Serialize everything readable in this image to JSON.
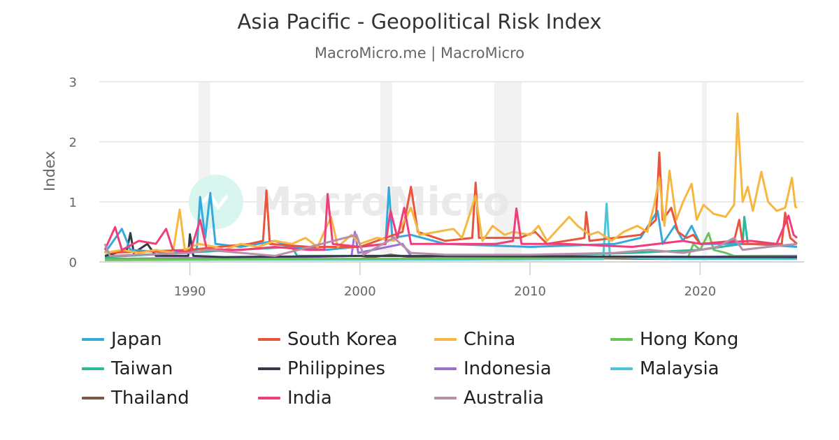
{
  "chart_data": {
    "type": "line",
    "title": "Asia Pacific - Geopolitical Risk Index",
    "subtitle": "MacroMicro.me | MacroMicro",
    "xlabel": "",
    "ylabel": "Index",
    "xlim": [
      1985,
      2025.7
    ],
    "ylim": [
      0,
      3
    ],
    "xticks": [
      "1990",
      "2000",
      "2010",
      "2020"
    ],
    "yticks": [
      "0",
      "1",
      "2",
      "3"
    ],
    "grid": true,
    "legend_placement": "bottom",
    "shaded_periods": [
      [
        1990.5,
        1991.2
      ],
      [
        2001.2,
        2001.9
      ],
      [
        2007.9,
        2009.5
      ],
      [
        2020.1,
        2020.4
      ]
    ],
    "watermark": "MacroMicro",
    "series": [
      {
        "name": "Thailand",
        "color": "#7b5848",
        "points": [
          [
            1985,
            0.05
          ],
          [
            1990,
            0.06
          ],
          [
            1995,
            0.05
          ],
          [
            2000,
            0.05
          ],
          [
            2001.8,
            0.12
          ],
          [
            2003,
            0.08
          ],
          [
            2005,
            0.05
          ],
          [
            2010,
            0.05
          ],
          [
            2014,
            0.06
          ],
          [
            2018,
            0.05
          ],
          [
            2020,
            0.07
          ],
          [
            2023,
            0.08
          ],
          [
            2025,
            0.06
          ],
          [
            2025.7,
            0.06
          ]
        ]
      },
      {
        "name": "Malaysia",
        "color": "#4ec5d6",
        "points": [
          [
            1985,
            0.03
          ],
          [
            1995,
            0.04
          ],
          [
            2005,
            0.04
          ],
          [
            2014.3,
            0.05
          ],
          [
            2014.5,
            0.97
          ],
          [
            2014.7,
            0.08
          ],
          [
            2018,
            0.05
          ],
          [
            2025.7,
            0.05
          ]
        ]
      },
      {
        "name": "Indonesia",
        "color": "#9b6fd8",
        "points": [
          [
            1985,
            0.05
          ],
          [
            1995,
            0.07
          ],
          [
            1999.5,
            0.1
          ],
          [
            1999.7,
            0.5
          ],
          [
            1999.9,
            0.15
          ],
          [
            2002.5,
            0.3
          ],
          [
            2003,
            0.1
          ],
          [
            2010,
            0.08
          ],
          [
            2020,
            0.08
          ],
          [
            2023,
            0.1
          ],
          [
            2025.7,
            0.1
          ]
        ]
      },
      {
        "name": "Hong Kong",
        "color": "#6cc35a",
        "points": [
          [
            1985,
            0.04
          ],
          [
            2000,
            0.05
          ],
          [
            2019.3,
            0.08
          ],
          [
            2019.6,
            0.3
          ],
          [
            2020,
            0.2
          ],
          [
            2020.5,
            0.48
          ],
          [
            2020.8,
            0.2
          ],
          [
            2021.5,
            0.15
          ],
          [
            2022,
            0.1
          ],
          [
            2025.7,
            0.08
          ]
        ]
      },
      {
        "name": "Taiwan",
        "color": "#2cb89a",
        "points": [
          [
            1985,
            0.08
          ],
          [
            1996,
            0.25
          ],
          [
            1996.3,
            0.1
          ],
          [
            2000,
            0.1
          ],
          [
            2010,
            0.1
          ],
          [
            2016,
            0.15
          ],
          [
            2020,
            0.2
          ],
          [
            2022.5,
            0.3
          ],
          [
            2022.6,
            0.75
          ],
          [
            2022.8,
            0.3
          ],
          [
            2024,
            0.3
          ],
          [
            2025.7,
            0.25
          ]
        ]
      },
      {
        "name": "Philippines",
        "color": "#333a4a",
        "points": [
          [
            1985,
            0.1
          ],
          [
            1986.3,
            0.2
          ],
          [
            1986.5,
            0.48
          ],
          [
            1986.7,
            0.15
          ],
          [
            1987.5,
            0.3
          ],
          [
            1988,
            0.1
          ],
          [
            1989.9,
            0.1
          ],
          [
            1990,
            0.46
          ],
          [
            1990.2,
            0.1
          ],
          [
            1992,
            0.08
          ],
          [
            2000,
            0.1
          ],
          [
            2025.7,
            0.08
          ]
        ]
      },
      {
        "name": "Japan",
        "color": "#36a9dc",
        "points": [
          [
            1985,
            0.15
          ],
          [
            1986,
            0.55
          ],
          [
            1986.5,
            0.2
          ],
          [
            1989,
            0.15
          ],
          [
            1990.4,
            0.2
          ],
          [
            1990.6,
            1.08
          ],
          [
            1990.9,
            0.4
          ],
          [
            1991.2,
            1.15
          ],
          [
            1991.5,
            0.3
          ],
          [
            1993,
            0.25
          ],
          [
            1995,
            0.35
          ],
          [
            1996,
            0.25
          ],
          [
            1998,
            0.2
          ],
          [
            2001.5,
            0.3
          ],
          [
            2001.7,
            1.24
          ],
          [
            2001.9,
            0.4
          ],
          [
            2003,
            0.45
          ],
          [
            2005,
            0.3
          ],
          [
            2010,
            0.25
          ],
          [
            2015,
            0.3
          ],
          [
            2016.5,
            0.4
          ],
          [
            2017.5,
            0.85
          ],
          [
            2017.8,
            0.3
          ],
          [
            2018.5,
            0.6
          ],
          [
            2019,
            0.35
          ],
          [
            2019.5,
            0.6
          ],
          [
            2020,
            0.3
          ],
          [
            2023,
            0.3
          ],
          [
            2025.7,
            0.25
          ]
        ]
      },
      {
        "name": "South Korea",
        "color": "#e8553a",
        "points": [
          [
            1985,
            0.15
          ],
          [
            1990,
            0.2
          ],
          [
            1993.5,
            0.3
          ],
          [
            1994.3,
            0.35
          ],
          [
            1994.5,
            1.19
          ],
          [
            1994.7,
            0.3
          ],
          [
            1997,
            0.25
          ],
          [
            2000,
            0.25
          ],
          [
            2002.5,
            0.5
          ],
          [
            2003,
            1.25
          ],
          [
            2003.4,
            0.5
          ],
          [
            2005,
            0.35
          ],
          [
            2006.6,
            0.4
          ],
          [
            2006.8,
            1.32
          ],
          [
            2007,
            0.4
          ],
          [
            2009.4,
            0.4
          ],
          [
            2010.3,
            0.5
          ],
          [
            2011,
            0.3
          ],
          [
            2013.2,
            0.4
          ],
          [
            2013.3,
            0.83
          ],
          [
            2013.5,
            0.35
          ],
          [
            2016.5,
            0.45
          ],
          [
            2017.4,
            0.7
          ],
          [
            2017.6,
            1.82
          ],
          [
            2017.8,
            0.7
          ],
          [
            2018.3,
            0.9
          ],
          [
            2018.7,
            0.5
          ],
          [
            2019.2,
            0.4
          ],
          [
            2019.6,
            0.45
          ],
          [
            2020,
            0.3
          ],
          [
            2022,
            0.35
          ],
          [
            2022.3,
            0.7
          ],
          [
            2022.5,
            0.3
          ],
          [
            2024.8,
            0.3
          ],
          [
            2025,
            0.82
          ],
          [
            2025.3,
            0.4
          ],
          [
            2025.7,
            0.3
          ]
        ]
      },
      {
        "name": "China",
        "color": "#f6b63f",
        "points": [
          [
            1985,
            0.15
          ],
          [
            1986,
            0.2
          ],
          [
            1987,
            0.15
          ],
          [
            1988,
            0.2
          ],
          [
            1989,
            0.15
          ],
          [
            1989.4,
            0.87
          ],
          [
            1989.7,
            0.2
          ],
          [
            1990.5,
            0.3
          ],
          [
            1991.5,
            0.25
          ],
          [
            1992,
            0.2
          ],
          [
            1993,
            0.3
          ],
          [
            1994,
            0.25
          ],
          [
            1995,
            0.35
          ],
          [
            1996,
            0.3
          ],
          [
            1996.8,
            0.4
          ],
          [
            1997.5,
            0.25
          ],
          [
            1998.3,
            0.75
          ],
          [
            1998.7,
            0.25
          ],
          [
            1999.5,
            0.45
          ],
          [
            2000,
            0.3
          ],
          [
            2001,
            0.4
          ],
          [
            2002,
            0.35
          ],
          [
            2003,
            0.9
          ],
          [
            2003.5,
            0.45
          ],
          [
            2004.5,
            0.5
          ],
          [
            2005.5,
            0.55
          ],
          [
            2006,
            0.4
          ],
          [
            2006.8,
            1.1
          ],
          [
            2007.2,
            0.35
          ],
          [
            2007.8,
            0.6
          ],
          [
            2008.5,
            0.45
          ],
          [
            2009,
            0.5
          ],
          [
            2010,
            0.45
          ],
          [
            2010.5,
            0.6
          ],
          [
            2011,
            0.35
          ],
          [
            2012.3,
            0.75
          ],
          [
            2012.8,
            0.6
          ],
          [
            2013.5,
            0.45
          ],
          [
            2014,
            0.5
          ],
          [
            2014.8,
            0.35
          ],
          [
            2015.5,
            0.5
          ],
          [
            2016.3,
            0.6
          ],
          [
            2016.9,
            0.5
          ],
          [
            2017.3,
            0.95
          ],
          [
            2017.6,
            1.4
          ],
          [
            2017.9,
            0.6
          ],
          [
            2018.2,
            1.52
          ],
          [
            2018.6,
            0.7
          ],
          [
            2019,
            1.0
          ],
          [
            2019.5,
            1.3
          ],
          [
            2019.8,
            0.7
          ],
          [
            2020.2,
            0.95
          ],
          [
            2020.8,
            0.8
          ],
          [
            2021.5,
            0.75
          ],
          [
            2022,
            0.95
          ],
          [
            2022.2,
            2.47
          ],
          [
            2022.5,
            1.0
          ],
          [
            2022.8,
            1.25
          ],
          [
            2023.1,
            0.85
          ],
          [
            2023.6,
            1.5
          ],
          [
            2024,
            1.0
          ],
          [
            2024.5,
            0.85
          ],
          [
            2025,
            0.9
          ],
          [
            2025.4,
            1.4
          ],
          [
            2025.6,
            0.92
          ],
          [
            2025.7,
            0.9
          ]
        ]
      },
      {
        "name": "India",
        "color": "#f03e7c",
        "points": [
          [
            1985,
            0.2
          ],
          [
            1985.6,
            0.58
          ],
          [
            1986,
            0.2
          ],
          [
            1987,
            0.35
          ],
          [
            1988,
            0.3
          ],
          [
            1988.6,
            0.55
          ],
          [
            1989,
            0.2
          ],
          [
            1990,
            0.15
          ],
          [
            1990.6,
            0.7
          ],
          [
            1991,
            0.2
          ],
          [
            1993,
            0.2
          ],
          [
            1995,
            0.25
          ],
          [
            1997,
            0.2
          ],
          [
            1997.9,
            0.2
          ],
          [
            1998.1,
            1.13
          ],
          [
            1998.4,
            0.3
          ],
          [
            2000,
            0.25
          ],
          [
            2001.5,
            0.3
          ],
          [
            2001.8,
            0.85
          ],
          [
            2002.2,
            0.4
          ],
          [
            2002.6,
            0.9
          ],
          [
            2003,
            0.3
          ],
          [
            2005,
            0.3
          ],
          [
            2008,
            0.3
          ],
          [
            2009,
            0.35
          ],
          [
            2009.2,
            0.89
          ],
          [
            2009.5,
            0.3
          ],
          [
            2012,
            0.3
          ],
          [
            2016,
            0.25
          ],
          [
            2019,
            0.35
          ],
          [
            2020,
            0.3
          ],
          [
            2023,
            0.35
          ],
          [
            2024.5,
            0.3
          ],
          [
            2025.2,
            0.77
          ],
          [
            2025.5,
            0.45
          ],
          [
            2025.7,
            0.4
          ]
        ]
      },
      {
        "name": "Australia",
        "color": "#b98ea8",
        "points": [
          [
            1985,
            0.3
          ],
          [
            1985.3,
            0.1
          ],
          [
            1987,
            0.12
          ],
          [
            1990,
            0.15
          ],
          [
            1991,
            0.2
          ],
          [
            1995,
            0.1
          ],
          [
            1999.8,
            0.45
          ],
          [
            2000.2,
            0.12
          ],
          [
            2002,
            0.4
          ],
          [
            2003,
            0.15
          ],
          [
            2005,
            0.12
          ],
          [
            2010,
            0.12
          ],
          [
            2015,
            0.15
          ],
          [
            2017,
            0.2
          ],
          [
            2019,
            0.15
          ],
          [
            2021,
            0.25
          ],
          [
            2022,
            0.4
          ],
          [
            2022.5,
            0.2
          ],
          [
            2024,
            0.25
          ],
          [
            2025.7,
            0.3
          ]
        ]
      }
    ]
  }
}
